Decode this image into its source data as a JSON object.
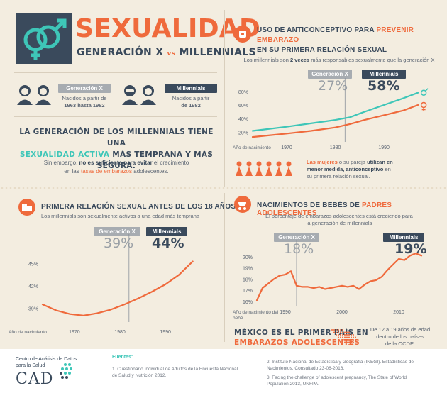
{
  "header": {
    "title": "SEXUALIDAD",
    "subtitle_gx": "GENERACIÓN X",
    "subtitle_vs": "vs",
    "subtitle_mil": "MILLENNIALS"
  },
  "generations": {
    "gx_label": "Generación X",
    "gx_desc_1": "Nacidos a partir de",
    "gx_desc_2": "1963 hasta 1982",
    "mil_label": "Millennials",
    "mil_desc_1": "Nacidos a partir",
    "mil_desc_2": "de 1982"
  },
  "headline": {
    "line1": "LA GENERACIÓN DE LOS MILLENNIALS TIENE UNA",
    "line2_a": "SEXUALIDAD ACTIVA",
    "line2_b": " MÁS TEMPRANA Y MÁS SEGURA.",
    "body1_a": "Sin embargo, ",
    "body1_b": "no es suficiente para evitar",
    "body1_c": " el crecimiento",
    "body2_a": "en las ",
    "body2_b": "tasas de embarazos",
    "body2_c": " adolescentes."
  },
  "contraceptive": {
    "title_a": "USO DE ANTICONCEPTIVO PARA ",
    "title_b": "PREVENIR EMBARAZO",
    "title_c": "EN SU PRIMERA RELACIÓN SEXUAL",
    "subtitle_a": "Los millennials son ",
    "subtitle_b": "2 veces",
    "subtitle_c": " más responsables sexualmente que la generación X",
    "gx_tag": "Generación X",
    "mil_tag": "Millennials",
    "gx_pct": "27%",
    "mil_pct": "58%",
    "note_a": "Las mujeres",
    "note_b": " o su pareja ",
    "note_c": "utilizan en",
    "note_d": "menor medida, anticonceptivo",
    "note_e": " en",
    "note_f": "su primera relación sexual."
  },
  "first_sex": {
    "title": "PRIMERA RELACIÓN SEXUAL ANTES DE LOS 18 AÑOS",
    "subtitle": "Los millennials son sexualmente activos a una edad más temprana",
    "gx_tag": "Generación X",
    "mil_tag": "Millennials",
    "gx_pct": "39%",
    "mil_pct": "44%"
  },
  "births": {
    "title_a": "NACIMIENTOS DE BEBÉS DE ",
    "title_b": "PADRES ADOLESCENTES",
    "subtitle1": "El porcentaje de embarazos adolescentes está creciendo para",
    "subtitle2": "la generación de millennials",
    "gx_tag": "Generación X",
    "mil_tag": "Millennials",
    "gx_pct": "18%",
    "mil_pct": "19%"
  },
  "mexico": {
    "line1": "MÉXICO ES EL PRIMER PAÍS EN",
    "line2": "EMBARAZOS ADOLESCENTES",
    "side1": "De 12 a 19 años de edad",
    "side2": "dentro de los países",
    "side3": "de la OCDE."
  },
  "footer": {
    "org1": "Centro de Análisis de Datos",
    "org2": "para la Salud",
    "logo": "CAD",
    "sources_title": "Fuentes:",
    "src1a": "1. Cuestionario Individual de Adultos de la Encuesta Nacional",
    "src1b": "de Salud y Nutrición 2012.",
    "src2a": "2. Instituto Nacional de Estadística y Geografía (INEGI). Estadísticas de",
    "src2b": "Nacimientos. Consultado 23-06-2016.",
    "src3a": "3. Facing the challenge of adolescent pregnancy, The State of World",
    "src3b": "Population 2013, UNFPA."
  },
  "colors": {
    "orange": "#ef6a3c",
    "teal": "#3ec6b8",
    "navy": "#3a4a5c",
    "grey": "#9aa0a6",
    "background": "#f3ede0"
  },
  "chart_data": [
    {
      "type": "line",
      "title": "USO DE ANTICONCEPTIVO PARA PREVENIR EMBARAZO EN SU PRIMERA RELACIÓN SEXUAL",
      "xlabel": "Año de nacimiento",
      "xlim": [
        1963,
        1998
      ],
      "ylim": [
        10,
        85
      ],
      "yticks": [
        "20%",
        "40%",
        "60%",
        "80%"
      ],
      "xticks": [
        "1970",
        "1980",
        "1990"
      ],
      "series": [
        {
          "name": "Hombres",
          "icon": "male-icon",
          "color": "#3ec6b8",
          "x": [
            1963,
            1970,
            1975,
            1980,
            1983,
            1986,
            1990,
            1994,
            1997
          ],
          "y": [
            22,
            28,
            33,
            38,
            42,
            50,
            60,
            70,
            78
          ]
        },
        {
          "name": "Mujeres",
          "icon": "female-icon",
          "color": "#ef6a3c",
          "x": [
            1963,
            1970,
            1975,
            1980,
            1983,
            1986,
            1990,
            1994,
            1997
          ],
          "y": [
            13,
            18,
            22,
            27,
            32,
            38,
            45,
            52,
            60
          ]
        }
      ],
      "annotations": {
        "gx": "27%",
        "millennials": "58%"
      }
    },
    {
      "type": "line",
      "title": "PRIMERA RELACIÓN SEXUAL ANTES DE LOS 18 AÑOS",
      "xlabel": "Año de nacimiento",
      "xlim": [
        1963,
        1997
      ],
      "ylim": [
        37.5,
        46.5
      ],
      "yticks": [
        "39%",
        "42%",
        "45%"
      ],
      "xticks": [
        "1970",
        "1980",
        "1990"
      ],
      "series": [
        {
          "name": "",
          "color": "#ef6a3c",
          "x": [
            1963,
            1966,
            1969,
            1972,
            1975,
            1978,
            1981,
            1984,
            1987,
            1990,
            1993,
            1996
          ],
          "y": [
            39.5,
            38.7,
            38.2,
            38.0,
            38.3,
            38.8,
            39.5,
            40.3,
            41.2,
            42.2,
            43.5,
            45.3
          ]
        }
      ],
      "annotations": {
        "gx": "39%",
        "millennials": "44%"
      }
    },
    {
      "type": "line",
      "title": "NACIMIENTOS DE BEBÉS DE PADRES ADOLESCENTES",
      "xlabel": "Año de nacimiento del bebé",
      "xlim": [
        1985,
        2015
      ],
      "ylim": [
        15.8,
        20.5
      ],
      "yticks": [
        "16%",
        "17%",
        "18%",
        "19%",
        "20%"
      ],
      "xticks": [
        "1990",
        "2000",
        "2010"
      ],
      "series": [
        {
          "name": "",
          "color": "#ef6a3c",
          "x": [
            1985,
            1986,
            1987,
            1988,
            1989,
            1990,
            1991,
            1992,
            1993,
            1994,
            1995,
            1996,
            1997,
            1998,
            1999,
            2000,
            2001,
            2002,
            2003,
            2004,
            2005,
            2006,
            2007,
            2008,
            2009,
            2010,
            2011,
            2012,
            2013,
            2014
          ],
          "y": [
            16.1,
            17.2,
            17.6,
            18.0,
            18.3,
            18.4,
            18.7,
            17.4,
            17.3,
            17.3,
            17.2,
            17.3,
            17.1,
            17.2,
            17.3,
            17.4,
            17.3,
            17.4,
            17.1,
            17.5,
            17.8,
            17.9,
            18.2,
            18.8,
            19.3,
            19.8,
            19.7,
            20.1,
            20.3,
            20.1
          ]
        }
      ],
      "annotations": {
        "gx": "18%",
        "millennials": "19%"
      }
    }
  ]
}
